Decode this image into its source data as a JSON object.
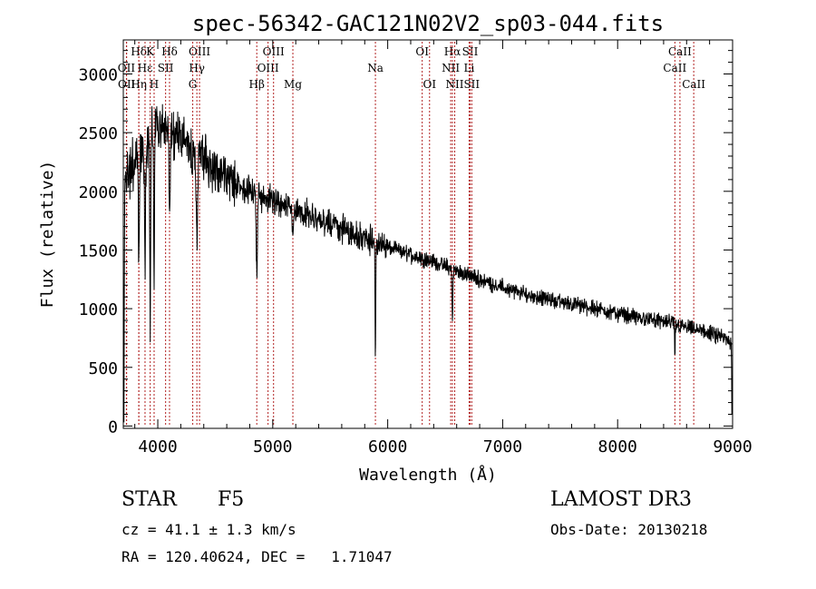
{
  "chart_data": {
    "type": "line",
    "title": "spec-56342-GAC121N02V2_sp03-044.fits",
    "xlabel": "Wavelength (Å)",
    "ylabel": "Flux (relative)",
    "xlim": [
      3700,
      9000
    ],
    "ylim": [
      -20,
      3290
    ],
    "xticks": [
      4000,
      5000,
      6000,
      7000,
      8000,
      9000
    ],
    "yticks": [
      0,
      500,
      1000,
      1500,
      2000,
      2500,
      3000
    ],
    "line_color": "#000000",
    "marker_color": "#b22222",
    "continuum": [
      [
        3700,
        2050
      ],
      [
        3800,
        2250
      ],
      [
        3900,
        2400
      ],
      [
        4000,
        2550
      ],
      [
        4100,
        2500
      ],
      [
        4200,
        2450
      ],
      [
        4300,
        2380
      ],
      [
        4400,
        2300
      ],
      [
        4500,
        2200
      ],
      [
        4600,
        2120
      ],
      [
        4800,
        2000
      ],
      [
        5000,
        1920
      ],
      [
        5200,
        1840
      ],
      [
        5400,
        1760
      ],
      [
        5600,
        1690
      ],
      [
        5800,
        1600
      ],
      [
        6000,
        1520
      ],
      [
        6200,
        1460
      ],
      [
        6400,
        1400
      ],
      [
        6600,
        1320
      ],
      [
        6800,
        1250
      ],
      [
        7000,
        1180
      ],
      [
        7200,
        1120
      ],
      [
        7400,
        1080
      ],
      [
        7600,
        1040
      ],
      [
        7800,
        1000
      ],
      [
        8000,
        960
      ],
      [
        8200,
        920
      ],
      [
        8400,
        890
      ],
      [
        8600,
        840
      ],
      [
        8800,
        790
      ],
      [
        9000,
        720
      ]
    ],
    "absorption_features": [
      {
        "w": 3705,
        "depth": 2000,
        "width": 4
      },
      {
        "w": 3835,
        "depth": 900,
        "width": 6
      },
      {
        "w": 3889,
        "depth": 1000,
        "width": 6
      },
      {
        "w": 3934,
        "depth": 1600,
        "width": 5
      },
      {
        "w": 3968,
        "depth": 1300,
        "width": 5
      },
      {
        "w": 4102,
        "depth": 700,
        "width": 7
      },
      {
        "w": 4340,
        "depth": 800,
        "width": 8
      },
      {
        "w": 4861,
        "depth": 700,
        "width": 8
      },
      {
        "w": 5175,
        "depth": 300,
        "width": 8
      },
      {
        "w": 5893,
        "depth": 1050,
        "width": 4
      },
      {
        "w": 6563,
        "depth": 400,
        "width": 6
      },
      {
        "w": 8498,
        "depth": 350,
        "width": 3
      },
      {
        "w": 8995,
        "depth": 650,
        "width": 4
      }
    ],
    "line_markers": [
      {
        "label": "Hδ",
        "wavelength": 3835,
        "row": 0
      },
      {
        "label": "OII",
        "wavelength": 3727,
        "row": 1
      },
      {
        "label": "OII",
        "wavelength": 3729,
        "row": 2
      },
      {
        "label": "Hε",
        "wavelength": 3889,
        "row": 1
      },
      {
        "label": "Hη",
        "wavelength": 3835,
        "row": 2
      },
      {
        "label": "K",
        "wavelength": 3934,
        "row": 0
      },
      {
        "label": "H",
        "wavelength": 3968,
        "row": 2
      },
      {
        "label": "SII",
        "wavelength": 4068,
        "row": 1
      },
      {
        "label": "Hδ",
        "wavelength": 4102,
        "row": 0
      },
      {
        "label": "OIII",
        "wavelength": 4363,
        "row": 0
      },
      {
        "label": "Hγ",
        "wavelength": 4340,
        "row": 1
      },
      {
        "label": "G",
        "wavelength": 4304,
        "row": 2
      },
      {
        "label": "Hβ",
        "wavelength": 4861,
        "row": 2
      },
      {
        "label": "OIII",
        "wavelength": 4959,
        "row": 1
      },
      {
        "label": "OIII",
        "wavelength": 5007,
        "row": 0
      },
      {
        "label": "Mg",
        "wavelength": 5175,
        "row": 2
      },
      {
        "label": "Na",
        "wavelength": 5893,
        "row": 1
      },
      {
        "label": "OI",
        "wavelength": 6300,
        "row": 0
      },
      {
        "label": "OI",
        "wavelength": 6364,
        "row": 2
      },
      {
        "label": "Hα",
        "wavelength": 6563,
        "row": 0
      },
      {
        "label": "NII",
        "wavelength": 6548,
        "row": 1
      },
      {
        "label": "NII",
        "wavelength": 6583,
        "row": 2
      },
      {
        "label": "SII",
        "wavelength": 6717,
        "row": 0
      },
      {
        "label": "Li",
        "wavelength": 6708,
        "row": 1
      },
      {
        "label": "SII",
        "wavelength": 6731,
        "row": 2
      },
      {
        "label": "CaII",
        "wavelength": 8542,
        "row": 0
      },
      {
        "label": "CaII",
        "wavelength": 8498,
        "row": 1
      },
      {
        "label": "CaII",
        "wavelength": 8662,
        "row": 2
      }
    ]
  },
  "info": {
    "object_type": "STAR",
    "subclass": "F5",
    "survey": "LAMOST DR3",
    "redshift_text": "cz = 41.1 ± 1.3 km/s",
    "obs_date": "Obs-Date: 20130218",
    "coords": "RA = 120.40624, DEC =   1.71047"
  }
}
